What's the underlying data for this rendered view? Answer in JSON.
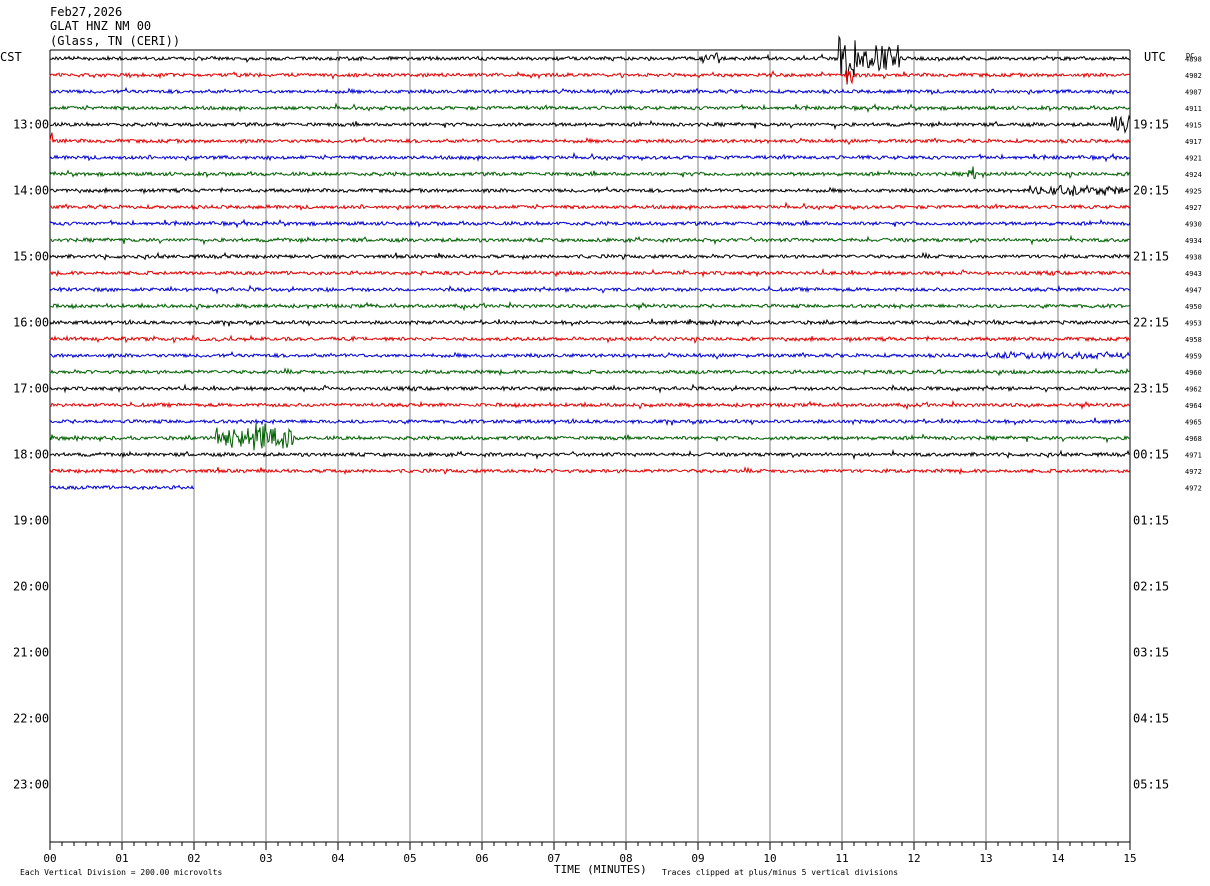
{
  "header": {
    "date": "Feb27,2026",
    "station": "GLAT HNZ NM 00",
    "location": "(Glass, TN (CERI))"
  },
  "left_tz": "CST",
  "right_tz": "UTC",
  "dc_label": "DC",
  "footer": {
    "scale_note": "Each Vertical Division =  200.00 microvolts",
    "xlabel": "TIME (MINUTES)",
    "clip_note": "Traces clipped at plus/minus 5 vertical divisions"
  },
  "colors": {
    "cycle": [
      "#000000",
      "#e00000",
      "#0000d0",
      "#006000"
    ],
    "grid": "#808080"
  },
  "chart_data": {
    "type": "line",
    "title": "GLAT HNZ NM 00",
    "xlabel": "TIME (MINUTES)",
    "xlim": [
      0,
      15
    ],
    "x_ticks": [
      "00",
      "01",
      "02",
      "03",
      "04",
      "05",
      "06",
      "07",
      "08",
      "09",
      "10",
      "11",
      "12",
      "13",
      "14",
      "15"
    ],
    "left_hour_labels": [
      "13:00",
      "14:00",
      "15:00",
      "16:00",
      "17:00",
      "18:00",
      "19:00",
      "20:00",
      "21:00",
      "22:00",
      "23:00"
    ],
    "right_hour_labels": [
      "19:15",
      "20:15",
      "21:15",
      "22:15",
      "23:15",
      "00:15",
      "01:15",
      "02:15",
      "03:15",
      "04:15",
      "05:15"
    ],
    "dc_offsets": [
      "4898",
      "4902",
      "4907",
      "4911",
      "4915",
      "4917",
      "4921",
      "4924",
      "4925",
      "4927",
      "4930",
      "4934",
      "4938",
      "4943",
      "4947",
      "4950",
      "4953",
      "4958",
      "4959",
      "4960",
      "4962",
      "4964",
      "4965",
      "4968",
      "4971",
      "4972",
      "4972"
    ],
    "trace_end_minutes": [
      15,
      15,
      15,
      15,
      15,
      15,
      15,
      15,
      15,
      15,
      15,
      15,
      15,
      15,
      15,
      15,
      15,
      15,
      15,
      15,
      15,
      15,
      15,
      15,
      15,
      15,
      2
    ],
    "events": [
      {
        "trace": 0,
        "start": 9.0,
        "end": 9.3,
        "amp": 7
      },
      {
        "trace": 0,
        "start": 10.95,
        "end": 11.2,
        "amp": 28
      },
      {
        "trace": 0,
        "start": 11.2,
        "end": 11.8,
        "amp": 16
      },
      {
        "trace": 1,
        "start": 11.05,
        "end": 11.15,
        "amp": 12
      },
      {
        "trace": 4,
        "start": 14.75,
        "end": 15.0,
        "amp": 12
      },
      {
        "trace": 5,
        "start": 0.0,
        "end": 0.05,
        "amp": 14
      },
      {
        "trace": 7,
        "start": 12.75,
        "end": 12.85,
        "amp": 9
      },
      {
        "trace": 8,
        "start": 13.6,
        "end": 14.9,
        "amp": 6
      },
      {
        "trace": 18,
        "start": 13.0,
        "end": 15.0,
        "amp": 4
      },
      {
        "trace": 23,
        "start": 2.3,
        "end": 3.4,
        "amp": 12
      },
      {
        "trace": 23,
        "start": 2.8,
        "end": 3.0,
        "amp": 20
      }
    ],
    "grid": true
  }
}
